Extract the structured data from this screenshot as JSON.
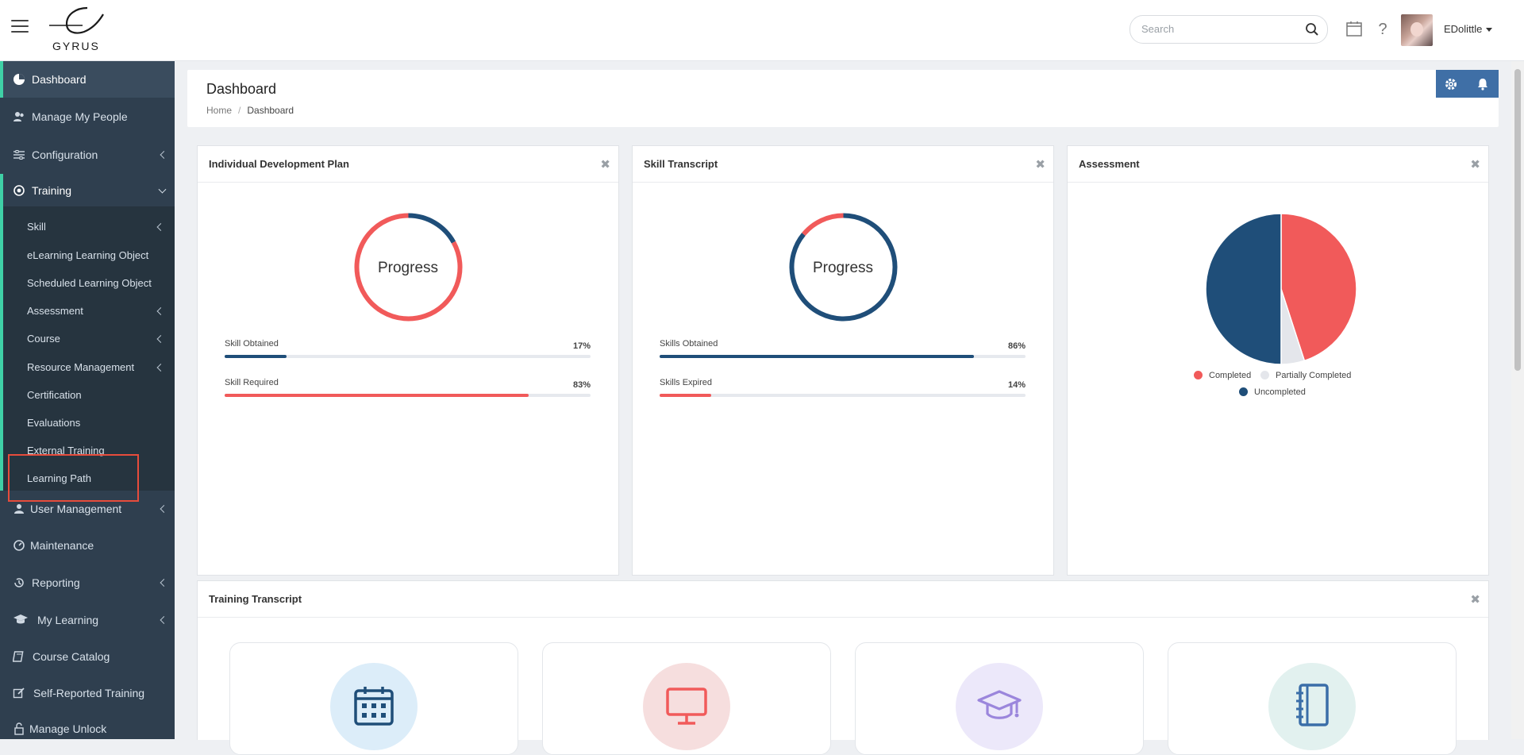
{
  "brand": {
    "logo_text": "GYRUS"
  },
  "topbar": {
    "search_placeholder": "Search",
    "user_name": "EDolittle"
  },
  "sidebar": {
    "items": [
      {
        "label": "Dashboard",
        "icon": "pie-chart-icon",
        "active": true
      },
      {
        "label": "Manage My People",
        "icon": "people-icon"
      },
      {
        "label": "Configuration",
        "icon": "sliders-icon"
      },
      {
        "label": "Training",
        "icon": "target-icon",
        "expanded": true
      },
      {
        "label": "User Management",
        "icon": "user-icon"
      },
      {
        "label": "Maintenance",
        "icon": "gauge-icon"
      },
      {
        "label": "Reporting",
        "icon": "history-icon"
      },
      {
        "label": "My Learning",
        "icon": "graduation-cap-icon"
      },
      {
        "label": "Course Catalog",
        "icon": "book-icon"
      },
      {
        "label": "Self-Reported Training",
        "icon": "edit-icon"
      },
      {
        "label": "Manage Unlock",
        "icon": "unlock-icon"
      }
    ],
    "training_sub": [
      {
        "label": "Skill"
      },
      {
        "label": "eLearning Learning Object"
      },
      {
        "label": "Scheduled Learning Object"
      },
      {
        "label": "Assessment"
      },
      {
        "label": "Course"
      },
      {
        "label": "Resource Management"
      },
      {
        "label": "Certification"
      },
      {
        "label": "Evaluations"
      },
      {
        "label": "External Training"
      },
      {
        "label": "Learning Path"
      }
    ]
  },
  "page": {
    "title": "Dashboard",
    "breadcrumb": {
      "home": "Home",
      "separator": "/",
      "current": "Dashboard"
    }
  },
  "widgets": {
    "idp": {
      "title": "Individual Development Plan",
      "center_label": "Progress",
      "rows": [
        {
          "label": "Skill Obtained",
          "percent_text": "17%",
          "value": 17,
          "color": "#1f4e79"
        },
        {
          "label": "Skill Required",
          "percent_text": "83%",
          "value": 83,
          "color": "#f15a5a"
        }
      ]
    },
    "skill_transcript": {
      "title": "Skill Transcript",
      "center_label": "Progress",
      "rows": [
        {
          "label": "Skills Obtained",
          "percent_text": "86%",
          "value": 86,
          "color": "#1f4e79"
        },
        {
          "label": "Skills Expired",
          "percent_text": "14%",
          "value": 14,
          "color": "#f15a5a"
        }
      ]
    },
    "assessment": {
      "title": "Assessment",
      "legend": [
        {
          "label": "Completed",
          "color": "#f15a5a"
        },
        {
          "label": "Partially Completed",
          "color": "#e4e6eb"
        },
        {
          "label": "Uncompleted",
          "color": "#1f4e79"
        }
      ]
    },
    "training_transcript": {
      "title": "Training Transcript",
      "cards": [
        {
          "icon": "calendar-icon",
          "bg": "#dcedf9",
          "fg": "#1f4e79"
        },
        {
          "icon": "monitor-icon",
          "bg": "#f6dede",
          "fg": "#f15a5a"
        },
        {
          "icon": "graduation-cap-icon",
          "bg": "#ece8fa",
          "fg": "#9b86dc"
        },
        {
          "icon": "notebook-icon",
          "bg": "#e2f1ef",
          "fg": "#3a6ea8"
        }
      ]
    }
  },
  "colors": {
    "accent": "#3fd0a6",
    "sidebar": "#2f3f4f",
    "navy": "#1f4e79",
    "red": "#f15a5a",
    "header_button": "#3f6fa6"
  },
  "chart_data": [
    {
      "type": "pie",
      "title": "Individual Development Plan",
      "categories": [
        "Skill Obtained",
        "Skill Required"
      ],
      "values": [
        17,
        83
      ]
    },
    {
      "type": "pie",
      "title": "Skill Transcript",
      "categories": [
        "Skills Obtained",
        "Skills Expired"
      ],
      "values": [
        86,
        14
      ]
    },
    {
      "type": "pie",
      "title": "Assessment",
      "categories": [
        "Completed",
        "Partially Completed",
        "Uncompleted"
      ],
      "values": [
        45,
        5,
        50
      ],
      "legend": "bottom"
    }
  ]
}
